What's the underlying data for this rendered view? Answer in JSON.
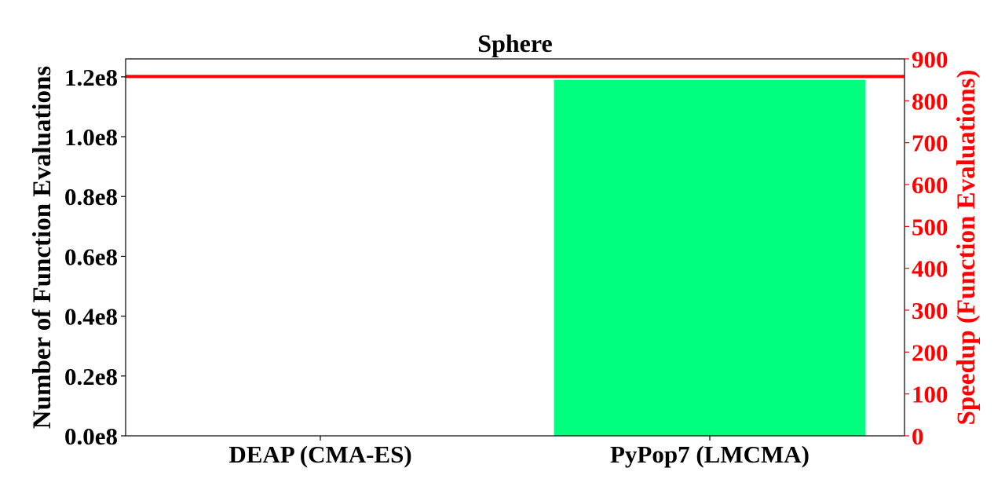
{
  "chart_data": {
    "type": "bar",
    "title": "Sphere",
    "categories": [
      "DEAP (CMA-ES)",
      "PyPop7 (LMCMA)"
    ],
    "series": [
      {
        "values": [
          0,
          119000000
        ]
      }
    ],
    "ylabel": "Number of Function Evaluations",
    "ylim": [
      0,
      126000000
    ],
    "yticks": [
      {
        "value": 0,
        "label": "0.0e8"
      },
      {
        "value": 20000000,
        "label": "0.2e8"
      },
      {
        "value": 40000000,
        "label": "0.4e8"
      },
      {
        "value": 60000000,
        "label": "0.6e8"
      },
      {
        "value": 80000000,
        "label": "0.8e8"
      },
      {
        "value": 100000000,
        "label": "1.0e8"
      },
      {
        "value": 120000000,
        "label": "1.2e8"
      }
    ],
    "y2label": "Speedup (Function Evaluations)",
    "y2lim": [
      0,
      900
    ],
    "y2ticks": [
      0,
      100,
      200,
      300,
      400,
      500,
      600,
      700,
      800,
      900
    ],
    "speedup_line": {
      "value": 858
    },
    "grid": false,
    "colors": {
      "bar": "#00ff7f",
      "speedup": "#ff0000",
      "axis": "#000000",
      "text": "#000000"
    }
  }
}
